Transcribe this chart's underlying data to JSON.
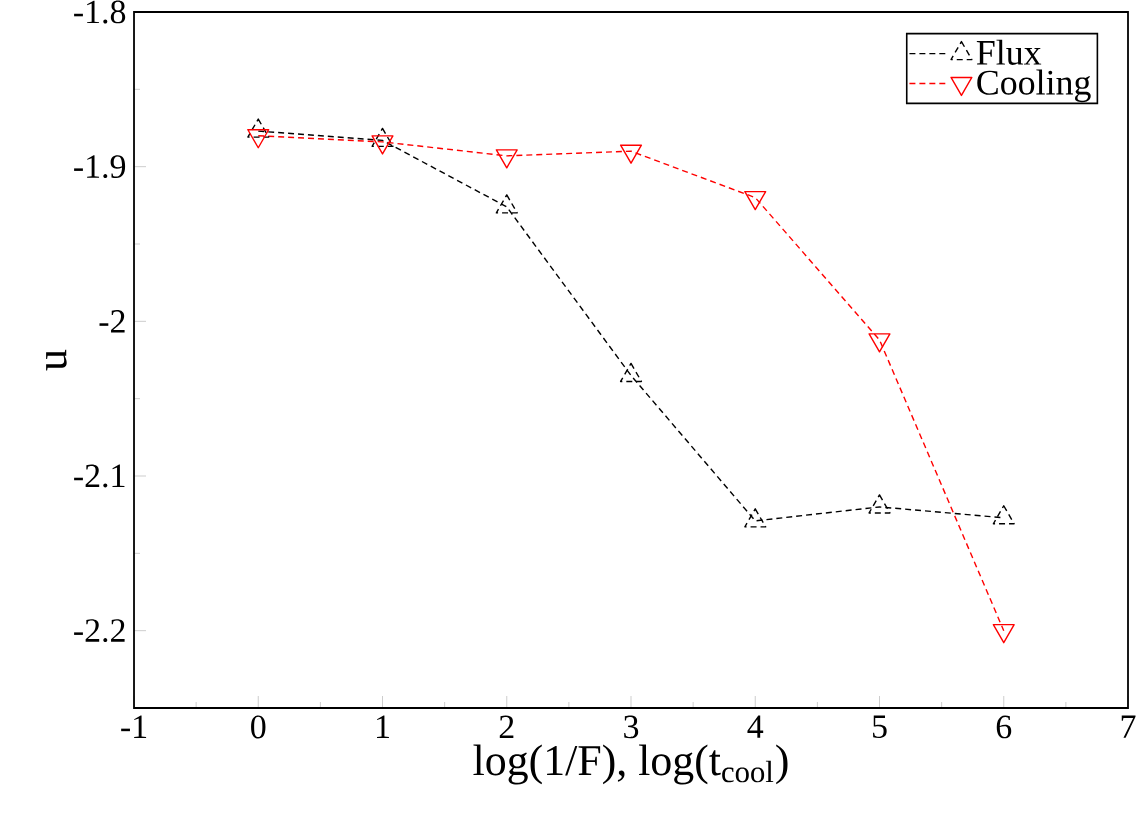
{
  "chart_data": {
    "type": "line",
    "xlabel": "log(1/F), log(t$_{cool}$)",
    "ylabel": "u",
    "x": [
      0,
      1,
      2,
      3,
      4,
      5,
      6
    ],
    "series": [
      {
        "name": "Flux",
        "color": "#000000",
        "marker": "triangle",
        "values": [
          -1.877,
          -1.883,
          -1.926,
          -2.035,
          -2.129,
          -2.12,
          -2.127
        ]
      },
      {
        "name": "Cooling",
        "color": "#ff0000",
        "marker": "triangle-down",
        "values": [
          -1.88,
          -1.884,
          -1.893,
          -1.89,
          -1.92,
          -2.012,
          -2.2
        ]
      }
    ],
    "xlim": [
      -1,
      7
    ],
    "xticks": [
      -1,
      0,
      1,
      2,
      3,
      4,
      5,
      6,
      7
    ],
    "ylim": [
      -2.25,
      -1.8
    ],
    "yticks": [
      -1.8,
      -1.9,
      {
        "value": -2,
        "label": "-2"
      },
      -2.1,
      -2.2
    ],
    "line_style": "dashed",
    "legend": "top right",
    "grid": false
  }
}
